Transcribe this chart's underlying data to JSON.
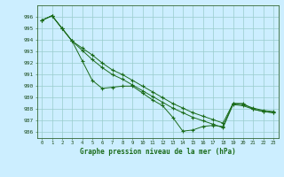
{
  "title": "Graphe pression niveau de la mer (hPa)",
  "bg_color": "#cceeff",
  "grid_color": "#99cccc",
  "line_color": "#1a6b1a",
  "ylim": [
    985.5,
    997.0
  ],
  "xlim": [
    -0.5,
    23.5
  ],
  "yticks": [
    986,
    987,
    988,
    989,
    990,
    991,
    992,
    993,
    994,
    995,
    996
  ],
  "xticks": [
    0,
    1,
    2,
    3,
    4,
    5,
    6,
    7,
    8,
    9,
    10,
    11,
    12,
    13,
    14,
    15,
    16,
    17,
    18,
    19,
    20,
    21,
    22,
    23
  ],
  "y_bot": [
    995.7,
    996.1,
    995.0,
    993.9,
    992.2,
    990.5,
    989.8,
    989.9,
    990.0,
    990.0,
    989.4,
    988.8,
    988.3,
    987.3,
    986.1,
    986.2,
    986.5,
    986.6,
    986.5,
    988.5,
    988.5,
    988.0,
    987.8,
    987.7
  ],
  "y_mid": [
    995.7,
    996.1,
    995.0,
    993.9,
    993.1,
    992.3,
    991.6,
    991.0,
    990.6,
    990.1,
    989.6,
    989.1,
    988.6,
    988.1,
    987.7,
    987.3,
    987.0,
    986.7,
    986.4,
    988.4,
    988.3,
    988.0,
    987.8,
    987.7
  ],
  "y_top": [
    995.7,
    996.1,
    995.0,
    993.9,
    993.3,
    992.7,
    992.0,
    991.4,
    991.0,
    990.5,
    990.0,
    989.5,
    989.0,
    988.5,
    988.1,
    987.7,
    987.4,
    987.1,
    986.8,
    988.5,
    988.4,
    988.1,
    987.9,
    987.8
  ]
}
